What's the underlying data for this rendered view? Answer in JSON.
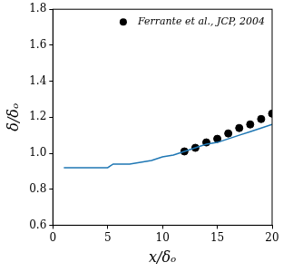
{
  "chart_data": {
    "type": "line",
    "x_label": "x/δₒ",
    "y_label": "δ/δₒ",
    "series": [
      {
        "type": "line",
        "color": "#1f77b4",
        "line_style": "solid",
        "x": [
          1,
          2,
          3,
          4,
          5,
          5.5,
          6,
          7,
          8,
          9,
          10,
          11,
          12,
          13,
          14,
          15,
          16,
          17,
          18,
          19,
          20
        ],
        "values": [
          0.92,
          0.92,
          0.92,
          0.92,
          0.92,
          0.94,
          0.94,
          0.94,
          0.95,
          0.96,
          0.98,
          0.99,
          1.01,
          1.03,
          1.05,
          1.06,
          1.08,
          1.1,
          1.12,
          1.14,
          1.16
        ]
      },
      {
        "name": "Ferrante et al., JCP, 2004",
        "type": "scatter",
        "color": "#000000",
        "marker": "circle",
        "x": [
          12,
          13,
          14,
          15,
          16,
          17,
          18,
          19,
          20
        ],
        "values": [
          1.01,
          1.03,
          1.06,
          1.08,
          1.11,
          1.14,
          1.16,
          1.19,
          1.22
        ]
      }
    ],
    "xlim": [
      0,
      20
    ],
    "xticks": [
      0,
      5,
      10,
      15,
      20
    ],
    "ylim": [
      0.6,
      1.8
    ],
    "yticks": [
      0.6,
      0.8,
      {
        "value": 1,
        "label": "1.0"
      },
      1.2,
      1.4,
      1.6,
      1.8
    ],
    "grid": false,
    "legend": "upper right"
  }
}
